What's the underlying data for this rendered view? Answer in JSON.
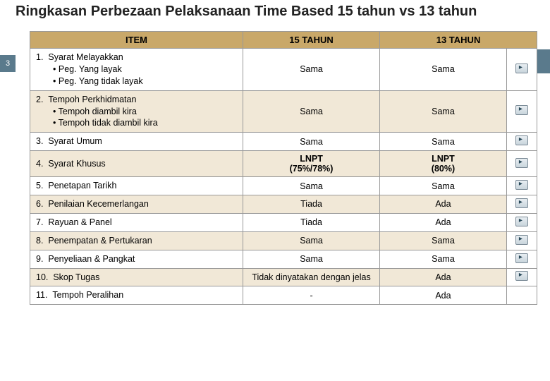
{
  "title": "Ringkasan Perbezaan Pelaksanaan Time Based 15 tahun vs 13 tahun",
  "page_number": "3",
  "columns": {
    "item": "ITEM",
    "c15": "15 TAHUN",
    "c13": "13 TAHUN"
  },
  "colors": {
    "header_bg": "#c9a869",
    "row_alt_bg": "#f1e8d7",
    "row_bg": "#ffffff",
    "border": "#999999",
    "pagenum_bg": "#5a7a8c"
  },
  "rows": [
    {
      "num": "1.",
      "label": "Syarat Melayakkan",
      "subs": [
        "Peg. Yang layak",
        "Peg. Yang tidak layak"
      ],
      "c15": "Sama",
      "c13": "Sama",
      "icon": true
    },
    {
      "num": "2.",
      "label": "Tempoh Perkhidmatan",
      "subs": [
        "Tempoh diambil kira",
        "Tempoh tidak diambil kira"
      ],
      "c15": "Sama",
      "c13": "Sama",
      "icon": true
    },
    {
      "num": "3.",
      "label": "Syarat Umum",
      "subs": [],
      "c15": "Sama",
      "c13": "Sama",
      "icon": true
    },
    {
      "num": "4.",
      "label": "Syarat Khusus",
      "subs": [],
      "c15": "LNPT (75%/78%)",
      "c13": "LNPT (80%)",
      "icon": true
    },
    {
      "num": "5.",
      "label": "Penetapan Tarikh",
      "subs": [],
      "c15": "Sama",
      "c13": "Sama",
      "icon": true
    },
    {
      "num": "6.",
      "label": "Penilaian Kecemerlangan",
      "subs": [],
      "c15": "Tiada",
      "c13": "Ada",
      "icon": true
    },
    {
      "num": "7.",
      "label": "Rayuan & Panel",
      "subs": [],
      "c15": "Tiada",
      "c13": "Ada",
      "icon": true
    },
    {
      "num": "8.",
      "label": "Penempatan & Pertukaran",
      "subs": [],
      "c15": "Sama",
      "c13": "Sama",
      "icon": true
    },
    {
      "num": "9.",
      "label": "Penyeliaan & Pangkat",
      "subs": [],
      "c15": "Sama",
      "c13": "Sama",
      "icon": true
    },
    {
      "num": "10.",
      "label": "Skop Tugas",
      "subs": [],
      "c15": "Tidak dinyatakan dengan jelas",
      "c13": "Ada",
      "icon": true
    },
    {
      "num": "11.",
      "label": "Tempoh Peralihan",
      "subs": [],
      "c15": "-",
      "c13": "Ada",
      "icon": false
    }
  ]
}
